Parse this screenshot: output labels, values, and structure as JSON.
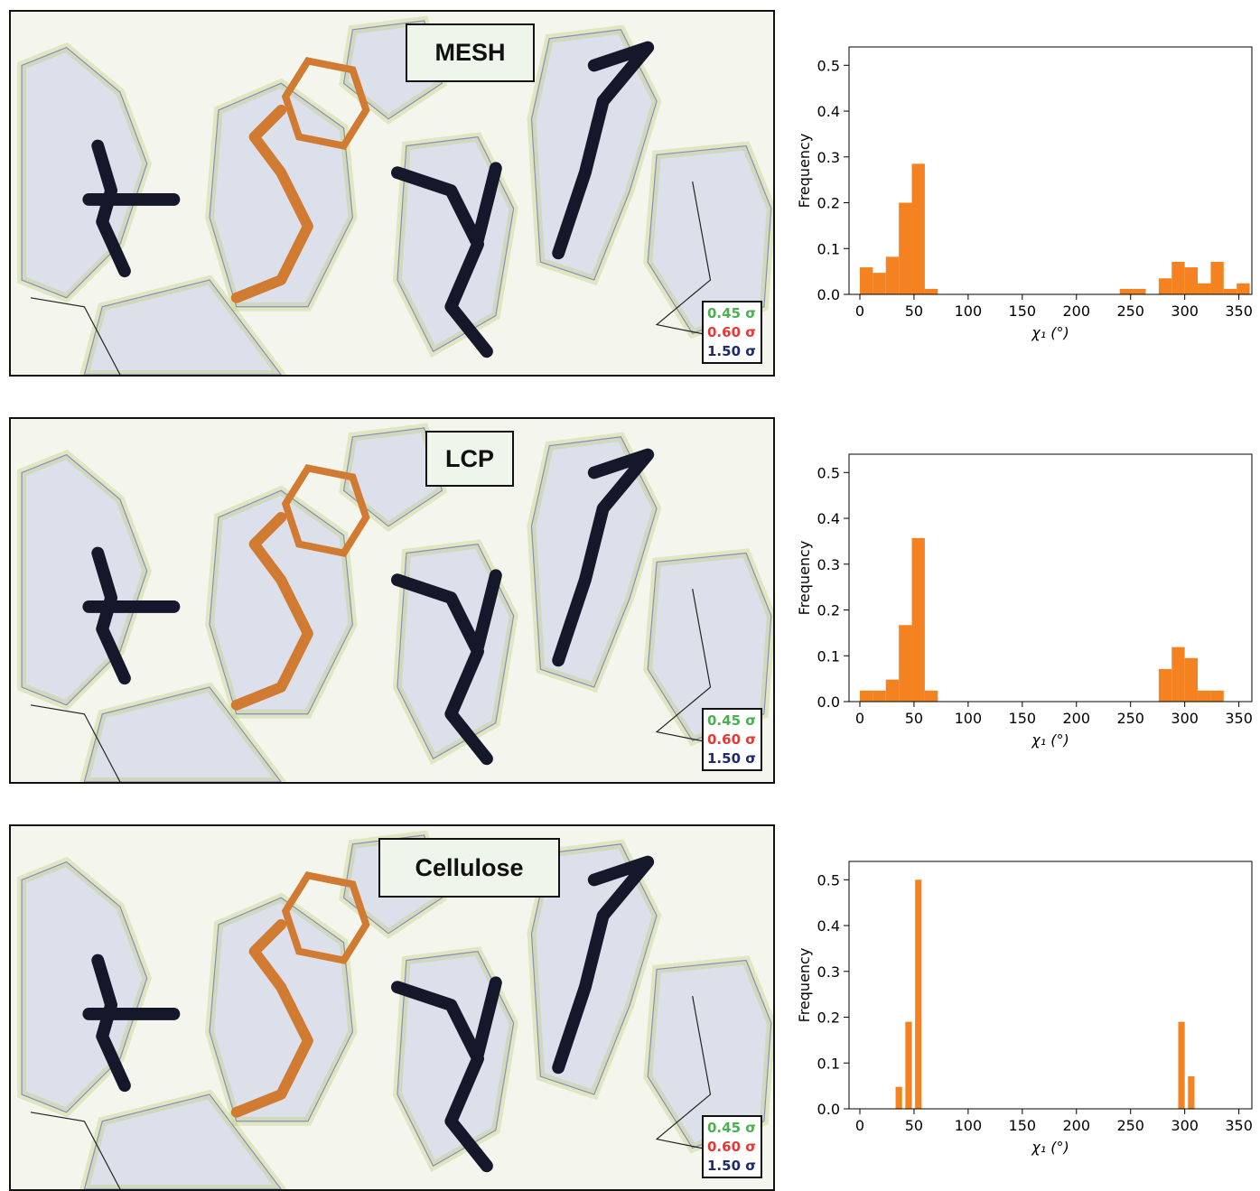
{
  "panels": [
    {
      "label": "MESH",
      "sigma": [
        "0.45 σ",
        "0.60 σ",
        "1.50 σ"
      ]
    },
    {
      "label": "LCP",
      "sigma": [
        "0.45 σ",
        "0.60 σ",
        "1.50 σ"
      ]
    },
    {
      "label": "Cellulose",
      "sigma": [
        "0.45 σ",
        "0.60 σ",
        "1.50 σ"
      ]
    }
  ],
  "colors": {
    "bar": "#f58220",
    "sigma_green": "#4caf50",
    "sigma_red": "#e53935",
    "sigma_blue": "#1f2a6b",
    "mesh": "#3c3cb4",
    "residue_dark": "#15182a",
    "residue_orange": "#d07a32"
  },
  "chart_data": [
    {
      "type": "bar",
      "panel": "MESH",
      "xlabel": "χ₁ (°)",
      "ylabel": "Frequency",
      "xlim": [
        -10,
        362
      ],
      "ylim": [
        0,
        0.54
      ],
      "xticks": [
        0,
        50,
        100,
        150,
        200,
        250,
        300,
        350
      ],
      "yticks": [
        0.0,
        0.1,
        0.2,
        0.3,
        0.4,
        0.5
      ],
      "bin_width": 12,
      "bins": [
        {
          "x": 0,
          "y": 0.059
        },
        {
          "x": 12,
          "y": 0.047
        },
        {
          "x": 24,
          "y": 0.082
        },
        {
          "x": 36,
          "y": 0.2
        },
        {
          "x": 48,
          "y": 0.285
        },
        {
          "x": 60,
          "y": 0.012
        },
        {
          "x": 240,
          "y": 0.012
        },
        {
          "x": 252,
          "y": 0.012
        },
        {
          "x": 276,
          "y": 0.035
        },
        {
          "x": 288,
          "y": 0.071
        },
        {
          "x": 300,
          "y": 0.059
        },
        {
          "x": 312,
          "y": 0.024
        },
        {
          "x": 324,
          "y": 0.071
        },
        {
          "x": 336,
          "y": 0.012
        },
        {
          "x": 348,
          "y": 0.024
        }
      ]
    },
    {
      "type": "bar",
      "panel": "LCP",
      "xlabel": "χ₁ (°)",
      "ylabel": "Frequency",
      "xlim": [
        -10,
        362
      ],
      "ylim": [
        0,
        0.54
      ],
      "xticks": [
        0,
        50,
        100,
        150,
        200,
        250,
        300,
        350
      ],
      "yticks": [
        0.0,
        0.1,
        0.2,
        0.3,
        0.4,
        0.5
      ],
      "bin_width": 12,
      "bins": [
        {
          "x": 0,
          "y": 0.024
        },
        {
          "x": 12,
          "y": 0.024
        },
        {
          "x": 24,
          "y": 0.048
        },
        {
          "x": 36,
          "y": 0.167
        },
        {
          "x": 48,
          "y": 0.357
        },
        {
          "x": 60,
          "y": 0.024
        },
        {
          "x": 276,
          "y": 0.071
        },
        {
          "x": 288,
          "y": 0.119
        },
        {
          "x": 300,
          "y": 0.095
        },
        {
          "x": 312,
          "y": 0.024
        },
        {
          "x": 324,
          "y": 0.024
        }
      ]
    },
    {
      "type": "bar",
      "panel": "Cellulose",
      "xlabel": "χ₁ (°)",
      "ylabel": "Frequency",
      "xlim": [
        -10,
        362
      ],
      "ylim": [
        0,
        0.54
      ],
      "xticks": [
        0,
        50,
        100,
        150,
        200,
        250,
        300,
        350
      ],
      "yticks": [
        0.0,
        0.1,
        0.2,
        0.3,
        0.4,
        0.5
      ],
      "bin_width": 6,
      "bins": [
        {
          "x": 33,
          "y": 0.048
        },
        {
          "x": 42,
          "y": 0.19
        },
        {
          "x": 51,
          "y": 0.5
        },
        {
          "x": 294,
          "y": 0.19
        },
        {
          "x": 303,
          "y": 0.071
        }
      ]
    }
  ]
}
